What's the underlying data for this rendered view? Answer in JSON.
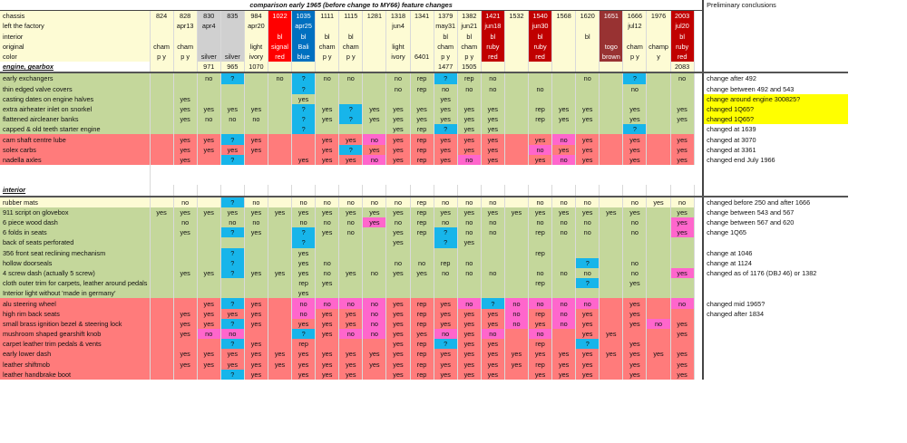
{
  "title": "comparison early 1965 (before change to MY66) feature changes",
  "conclusions_header": "Preliminary conclusions",
  "colors": {
    "light_yellow": "#fdfbd4",
    "green": "#c4d79b",
    "red": "#ff7b7b",
    "blue": "#17b5ea",
    "magenta": "#ff66cc",
    "gray": "#d0d0d0",
    "signal_red": "#ff0000",
    "bali_blue": "#0070c0",
    "ruby_red": "#c00000",
    "togo_brown": "#983232",
    "highlight_yellow": "#ffff00"
  },
  "header": {
    "labels": [
      "chassis",
      "left the factory",
      "interior",
      "original",
      "color"
    ],
    "cars": [
      {
        "lines": [
          "824",
          "",
          "",
          "cham",
          "p y"
        ]
      },
      {
        "lines": [
          "828",
          "apr13",
          "",
          "cham",
          "p y"
        ]
      },
      {
        "lines": [
          "830",
          "apr4",
          "",
          "",
          "silver"
        ]
      },
      {
        "lines": [
          "835",
          "",
          "",
          "",
          "silver"
        ]
      },
      {
        "lines": [
          "984",
          "apr20",
          "",
          "light",
          "ivory"
        ]
      },
      {
        "lines": [
          "1022",
          "",
          "bl",
          "signal",
          "red"
        ]
      },
      {
        "lines": [
          "1035",
          "apr25",
          "bl",
          "Bali",
          "blue"
        ]
      },
      {
        "lines": [
          "1111",
          "",
          "bl",
          "cham",
          "p y"
        ]
      },
      {
        "lines": [
          "1115",
          "",
          "bl",
          "cham",
          "p y"
        ]
      },
      {
        "lines": [
          "1281",
          "",
          "",
          "",
          ""
        ]
      },
      {
        "lines": [
          "1318",
          "jun4",
          "",
          "light",
          "ivory"
        ]
      },
      {
        "lines": [
          "1341",
          "",
          "",
          "",
          "6401"
        ]
      },
      {
        "lines": [
          "1379",
          "may31",
          "bl",
          "cham",
          "p y"
        ]
      },
      {
        "lines": [
          "1382",
          "jun21",
          "bl",
          "cham",
          "p y"
        ]
      },
      {
        "lines": [
          "1421",
          "jun18",
          "bl",
          "ruby",
          "red"
        ]
      },
      {
        "lines": [
          "1532",
          "",
          "",
          "",
          ""
        ]
      },
      {
        "lines": [
          "1540",
          "jun30",
          "bl",
          "ruby",
          "red"
        ]
      },
      {
        "lines": [
          "1568",
          "",
          "",
          "",
          ""
        ]
      },
      {
        "lines": [
          "1620",
          "",
          "bl",
          "",
          ""
        ]
      },
      {
        "lines": [
          "1651",
          "",
          "",
          "togo",
          "brown"
        ]
      },
      {
        "lines": [
          "1666",
          "jul12",
          "",
          "cham",
          "p y"
        ]
      },
      {
        "lines": [
          "1976",
          "",
          "",
          "champ",
          "y"
        ]
      },
      {
        "lines": [
          "2003",
          "jul20",
          "bl",
          "ruby",
          "red"
        ]
      }
    ]
  },
  "sections": [
    {
      "title": "engine, gearbox",
      "engine_numbers": [
        "",
        "",
        "971",
        "965",
        "1070",
        "",
        "",
        "",
        "",
        "",
        "",
        "",
        "1477",
        "1505",
        "",
        "",
        "",
        "",
        "",
        "",
        "",
        "",
        "2083"
      ],
      "rows": [
        {
          "label": "early exchangers",
          "conclusion": "change after 492",
          "values": [
            "",
            "",
            "no",
            "?",
            "",
            "no",
            "?",
            "no",
            "no",
            "",
            "no",
            "rep",
            "?",
            "rep",
            "no",
            "",
            "",
            "",
            "no",
            "",
            "?",
            "",
            "no"
          ]
        },
        {
          "label": "thin edged valve covers",
          "conclusion": "change between 492 and 543",
          "values": [
            "",
            "",
            "",
            "",
            "",
            "",
            "?",
            "",
            "",
            "",
            "no",
            "rep",
            "no",
            "no",
            "no",
            "",
            "no",
            "",
            "",
            "",
            "no",
            "",
            ""
          ]
        },
        {
          "label": "casting dates on engine halves",
          "conclusion": "change around engine 300825?",
          "highlight": true,
          "values": [
            "",
            "yes",
            "",
            "",
            "",
            "",
            "yes",
            "",
            "",
            "",
            "",
            "",
            "yes",
            "",
            "",
            "",
            "",
            "",
            "",
            "",
            "",
            "",
            ""
          ]
        },
        {
          "label": "extra airheater inlet on snorkel",
          "conclusion": "changed 1Q65?",
          "highlight": true,
          "values": [
            "",
            "yes",
            "yes",
            "yes",
            "yes",
            "",
            "?",
            "yes",
            "?",
            "yes",
            "yes",
            "yes",
            "yes",
            "yes",
            "yes",
            "",
            "rep",
            "yes",
            "yes",
            "",
            "yes",
            "",
            "yes"
          ]
        },
        {
          "label": "flattened aircleaner banks",
          "conclusion": "changed 1Q65?",
          "highlight": true,
          "values": [
            "",
            "yes",
            "no",
            "no",
            "no",
            "",
            "?",
            "yes",
            "?",
            "yes",
            "yes",
            "yes",
            "yes",
            "yes",
            "yes",
            "",
            "rep",
            "yes",
            "yes",
            "",
            "yes",
            "",
            "yes"
          ]
        },
        {
          "label": "capped & old teeth starter engine",
          "conclusion": "changed at 1639",
          "values": [
            "",
            "",
            "",
            "",
            "",
            "",
            "?",
            "",
            "",
            "",
            "yes",
            "rep",
            "?",
            "yes",
            "yes",
            "",
            "",
            "",
            "",
            "",
            "?",
            "",
            ""
          ]
        },
        {
          "label": "cam shaft centre lube",
          "conclusion": "changed at 3070",
          "values": [
            "",
            "yes",
            "yes",
            "?",
            "yes",
            "",
            "",
            "yes",
            "yes",
            "no",
            "yes",
            "rep",
            "yes",
            "yes",
            "yes",
            "",
            "yes",
            "no",
            "yes",
            "",
            "yes",
            "",
            "yes"
          ]
        },
        {
          "label": "solex carbs",
          "conclusion": "changed at 3361",
          "values": [
            "",
            "yes",
            "yes",
            "yes",
            "yes",
            "",
            "",
            "yes",
            "?",
            "yes",
            "yes",
            "rep",
            "yes",
            "yes",
            "yes",
            "",
            "no",
            "yes",
            "yes",
            "",
            "yes",
            "",
            "yes"
          ]
        },
        {
          "label": "nadella axles",
          "conclusion": "changed end July 1966",
          "values": [
            "",
            "yes",
            "",
            "?",
            "",
            "",
            "yes",
            "yes",
            "yes",
            "no",
            "yes",
            "rep",
            "yes",
            "no",
            "yes",
            "",
            "yes",
            "no",
            "yes",
            "",
            "yes",
            "",
            "yes"
          ]
        }
      ]
    },
    {
      "title": "interior",
      "rows": [
        {
          "label": "rubber mats",
          "conclusion": "changed before 250 and after 1666",
          "values": [
            "",
            "no",
            "",
            "?",
            "no",
            "",
            "no",
            "no",
            "no",
            "no",
            "no",
            "rep",
            "no",
            "no",
            "no",
            "",
            "no",
            "no",
            "no",
            "",
            "no",
            "yes",
            "no"
          ]
        },
        {
          "label": "911 script on glovebox",
          "conclusion": "change between 543 and 567",
          "values": [
            "yes",
            "yes",
            "yes",
            "yes",
            "yes",
            "yes",
            "yes",
            "yes",
            "yes",
            "yes",
            "yes",
            "rep",
            "yes",
            "yes",
            "yes",
            "yes",
            "yes",
            "yes",
            "yes",
            "yes",
            "yes",
            "",
            "yes"
          ]
        },
        {
          "label": "6 piece wood dash",
          "conclusion": "change between 567 and 620",
          "values": [
            "",
            "no",
            "",
            "no",
            "no",
            "",
            "no",
            "no",
            "no",
            "yes",
            "no",
            "rep",
            "no",
            "no",
            "no",
            "",
            "no",
            "no",
            "no",
            "",
            "no",
            "",
            "yes"
          ]
        },
        {
          "label": "6 folds in seats",
          "conclusion": "change 1Q65",
          "values": [
            "",
            "yes",
            "",
            "?",
            "yes",
            "",
            "?",
            "yes",
            "no",
            "",
            "yes",
            "rep",
            "?",
            "no",
            "no",
            "",
            "rep",
            "no",
            "no",
            "",
            "no",
            "",
            "yes"
          ]
        },
        {
          "label": "back of seats perforated",
          "conclusion": "",
          "values": [
            "",
            "",
            "",
            "",
            "",
            "",
            "?",
            "",
            "",
            "",
            "yes",
            "",
            "?",
            "yes",
            "",
            "",
            "",
            "",
            "",
            "",
            "",
            "",
            ""
          ]
        },
        {
          "label": "356 front seat reclining mechanism",
          "conclusion": "change at 1046",
          "values": [
            "",
            "",
            "",
            "?",
            "",
            "",
            "yes",
            "",
            "",
            "",
            "",
            "",
            "",
            "",
            "",
            "",
            "rep",
            "",
            "",
            "",
            "",
            "",
            ""
          ]
        },
        {
          "label": "hollow doorseals",
          "conclusion": "change at 1124",
          "values": [
            "",
            "",
            "",
            "?",
            "",
            "",
            "yes",
            "no",
            "",
            "",
            "no",
            "no",
            "rep",
            "no",
            "",
            "",
            "",
            "",
            "?",
            "",
            "no",
            "",
            ""
          ]
        },
        {
          "label": "4 screw dash (actually 5 screw)",
          "conclusion": "changed as of 1176 (DBJ 46) or 1382",
          "values": [
            "",
            "yes",
            "yes",
            "?",
            "yes",
            "yes",
            "yes",
            "no",
            "yes",
            "no",
            "yes",
            "yes",
            "no",
            "no",
            "no",
            "",
            "no",
            "no",
            "no",
            "",
            "no",
            "",
            "yes"
          ]
        },
        {
          "label": "cloth outer trim for carpets, leather around pedals",
          "conclusion": "",
          "values": [
            "",
            "",
            "",
            "",
            "",
            "",
            "rep",
            "yes",
            "",
            "",
            "",
            "",
            "",
            "",
            "",
            "",
            "rep",
            "",
            "?",
            "",
            "yes",
            "",
            ""
          ]
        },
        {
          "label": "Interior light without 'made in germany'",
          "conclusion": "",
          "values": [
            "",
            "",
            "",
            "",
            "",
            "",
            "yes",
            "",
            "",
            "",
            "",
            "",
            "",
            "",
            "",
            "",
            "",
            "",
            "",
            "",
            "",
            "",
            ""
          ]
        },
        {
          "label": "alu steering wheel",
          "conclusion": "changed mid 1965?",
          "values": [
            "",
            "",
            "yes",
            "?",
            "yes",
            "",
            "no",
            "no",
            "no",
            "no",
            "yes",
            "rep",
            "yes",
            "no",
            "?",
            "no",
            "no",
            "no",
            "no",
            "",
            "yes",
            "",
            "no"
          ]
        },
        {
          "label": "high rim back seats",
          "conclusion": "changed after 1834",
          "values": [
            "",
            "yes",
            "yes",
            "yes",
            "yes",
            "",
            "no",
            "yes",
            "yes",
            "no",
            "yes",
            "rep",
            "yes",
            "yes",
            "yes",
            "no",
            "rep",
            "no",
            "yes",
            "",
            "yes",
            "",
            ""
          ]
        },
        {
          "label": "small brass ignition bezel & steering lock",
          "conclusion": "",
          "values": [
            "",
            "yes",
            "yes",
            "?",
            "yes",
            "",
            "yes",
            "yes",
            "yes",
            "no",
            "yes",
            "rep",
            "yes",
            "yes",
            "yes",
            "no",
            "yes",
            "no",
            "yes",
            "",
            "yes",
            "no",
            "yes"
          ]
        },
        {
          "label": "mushroom shaped gearshift knob",
          "conclusion": "",
          "values": [
            "",
            "yes",
            "no",
            "no",
            "",
            "",
            "?",
            "yes",
            "no",
            "no",
            "yes",
            "yes",
            "no",
            "yes",
            "no",
            "",
            "no",
            "",
            "yes",
            "yes",
            "",
            "",
            "yes"
          ]
        },
        {
          "label": "carpet leather trim pedals & vents",
          "conclusion": "",
          "values": [
            "",
            "",
            "",
            "?",
            "yes",
            "",
            "rep",
            "",
            "",
            "",
            "yes",
            "rep",
            "?",
            "yes",
            "yes",
            "",
            "rep",
            "",
            "?",
            "",
            "yes",
            "",
            ""
          ]
        },
        {
          "label": "early lower dash",
          "conclusion": "",
          "values": [
            "",
            "yes",
            "yes",
            "yes",
            "yes",
            "yes",
            "yes",
            "yes",
            "yes",
            "yes",
            "yes",
            "rep",
            "yes",
            "yes",
            "yes",
            "yes",
            "yes",
            "yes",
            "yes",
            "yes",
            "yes",
            "yes",
            "yes"
          ]
        },
        {
          "label": "leather shiftmob",
          "conclusion": "",
          "values": [
            "",
            "yes",
            "yes",
            "yes",
            "yes",
            "yes",
            "yes",
            "yes",
            "yes",
            "yes",
            "yes",
            "rep",
            "yes",
            "yes",
            "yes",
            "yes",
            "rep",
            "yes",
            "yes",
            "",
            "yes",
            "",
            "yes"
          ]
        },
        {
          "label": "leather handbrake boot",
          "conclusion": "",
          "values": [
            "",
            "",
            "",
            "?",
            "yes",
            "",
            "yes",
            "yes",
            "yes",
            "",
            "yes",
            "rep",
            "yes",
            "yes",
            "yes",
            "",
            "yes",
            "yes",
            "yes",
            "",
            "yes",
            "",
            "yes"
          ]
        }
      ]
    }
  ]
}
